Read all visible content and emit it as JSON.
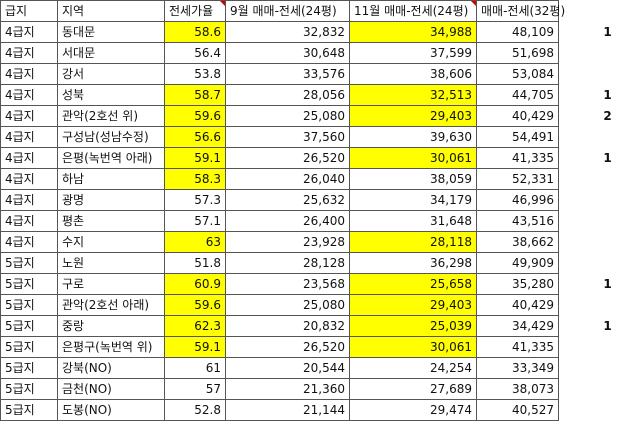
{
  "headers": [
    "급지",
    "지역",
    "전세가율",
    "9월 매매-전세(24평)",
    "11월 매매-전세(24평)",
    "매매-전세(32평)"
  ],
  "rows": [
    {
      "grade": "4급지",
      "region": "동대문",
      "ratio": "58.6",
      "sep": "32,832",
      "nov": "34,988",
      "p32": "48,109",
      "flag": "1",
      "hl_ratio": true,
      "hl_nov": true
    },
    {
      "grade": "4급지",
      "region": "서대문",
      "ratio": "56.4",
      "sep": "30,648",
      "nov": "37,599",
      "p32": "51,698",
      "flag": "",
      "hl_ratio": false,
      "hl_nov": false
    },
    {
      "grade": "4급지",
      "region": "강서",
      "ratio": "53.8",
      "sep": "33,576",
      "nov": "38,606",
      "p32": "53,084",
      "flag": "",
      "hl_ratio": false,
      "hl_nov": false
    },
    {
      "grade": "4급지",
      "region": "성북",
      "ratio": "58.7",
      "sep": "28,056",
      "nov": "32,513",
      "p32": "44,705",
      "flag": "1",
      "hl_ratio": true,
      "hl_nov": true
    },
    {
      "grade": "4급지",
      "region": "관악(2호선 위)",
      "ratio": "59.6",
      "sep": "25,080",
      "nov": "29,403",
      "p32": "40,429",
      "flag": "2",
      "hl_ratio": true,
      "hl_nov": true
    },
    {
      "grade": "4급지",
      "region": "구성남(성남수정)",
      "ratio": "56.6",
      "sep": "37,560",
      "nov": "39,630",
      "p32": "54,491",
      "flag": "",
      "hl_ratio": true,
      "hl_nov": false
    },
    {
      "grade": "4급지",
      "region": "은평(녹번역 아래)",
      "ratio": "59.1",
      "sep": "26,520",
      "nov": "30,061",
      "p32": "41,335",
      "flag": "1",
      "hl_ratio": true,
      "hl_nov": true
    },
    {
      "grade": "4급지",
      "region": "하남",
      "ratio": "58.3",
      "sep": "26,040",
      "nov": "38,059",
      "p32": "52,331",
      "flag": "",
      "hl_ratio": true,
      "hl_nov": false
    },
    {
      "grade": "4급지",
      "region": "광명",
      "ratio": "57.3",
      "sep": "25,632",
      "nov": "34,179",
      "p32": "46,996",
      "flag": "",
      "hl_ratio": false,
      "hl_nov": false
    },
    {
      "grade": "4급지",
      "region": "평촌",
      "ratio": "57.1",
      "sep": "26,400",
      "nov": "31,648",
      "p32": "43,516",
      "flag": "",
      "hl_ratio": false,
      "hl_nov": false
    },
    {
      "grade": "4급지",
      "region": "수지",
      "ratio": "63",
      "sep": "23,928",
      "nov": "28,118",
      "p32": "38,662",
      "flag": "",
      "hl_ratio": true,
      "hl_nov": true
    },
    {
      "grade": "5급지",
      "region": "노원",
      "ratio": "51.8",
      "sep": "28,128",
      "nov": "36,298",
      "p32": "49,909",
      "flag": "",
      "hl_ratio": false,
      "hl_nov": false
    },
    {
      "grade": "5급지",
      "region": "구로",
      "ratio": "60.9",
      "sep": "23,568",
      "nov": "25,658",
      "p32": "35,280",
      "flag": "1",
      "hl_ratio": true,
      "hl_nov": true
    },
    {
      "grade": "5급지",
      "region": "관악(2호선 아래)",
      "ratio": "59.6",
      "sep": "25,080",
      "nov": "29,403",
      "p32": "40,429",
      "flag": "",
      "hl_ratio": true,
      "hl_nov": true
    },
    {
      "grade": "5급지",
      "region": "중랑",
      "ratio": "62.3",
      "sep": "20,832",
      "nov": "25,039",
      "p32": "34,429",
      "flag": "1",
      "hl_ratio": true,
      "hl_nov": true
    },
    {
      "grade": "5급지",
      "region": "은평구(녹번역 위)",
      "ratio": "59.1",
      "sep": "26,520",
      "nov": "30,061",
      "p32": "41,335",
      "flag": "",
      "hl_ratio": true,
      "hl_nov": true
    },
    {
      "grade": "5급지",
      "region": "강북(NO)",
      "ratio": "61",
      "sep": "20,544",
      "nov": "24,254",
      "p32": "33,349",
      "flag": "",
      "hl_ratio": false,
      "hl_nov": false
    },
    {
      "grade": "5급지",
      "region": "금천(NO)",
      "ratio": "57",
      "sep": "21,360",
      "nov": "27,689",
      "p32": "38,073",
      "flag": "",
      "hl_ratio": false,
      "hl_nov": false
    },
    {
      "grade": "5급지",
      "region": "도봉(NO)",
      "ratio": "52.8",
      "sep": "21,144",
      "nov": "29,474",
      "p32": "40,527",
      "flag": "",
      "hl_ratio": false,
      "hl_nov": false
    }
  ],
  "colors": {
    "highlight": "#ffff00",
    "comment_marker": "#d00000",
    "border": "#555555"
  }
}
